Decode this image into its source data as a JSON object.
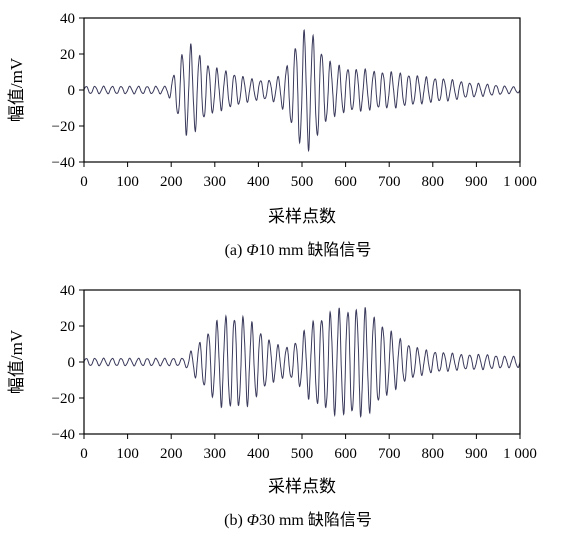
{
  "chart_data": [
    {
      "type": "line",
      "caption_prefix": "(a) ",
      "caption_symbol": "Φ",
      "caption_rest": "10 mm 缺陷信号",
      "xlabel": "采样点数",
      "ylabel": "幅值/mV",
      "xlim": [
        0,
        1000
      ],
      "ylim": [
        -40,
        40
      ],
      "xticks": [
        0,
        100,
        200,
        300,
        400,
        500,
        600,
        700,
        800,
        900,
        1000
      ],
      "xtick_labels": [
        "0",
        "100",
        "200",
        "300",
        "400",
        "500",
        "600",
        "700",
        "800",
        "900",
        "1 000"
      ],
      "yticks": [
        40,
        20,
        0,
        -20,
        -40
      ],
      "ytick_labels": [
        "40",
        "20",
        "0",
        "−20",
        "−40"
      ],
      "series": [
        {
          "period": 20,
          "envelope": [
            [
              0,
              2
            ],
            [
              190,
              2
            ],
            [
              195,
              4
            ],
            [
              205,
              8
            ],
            [
              215,
              14
            ],
            [
              225,
              20
            ],
            [
              235,
              24
            ],
            [
              245,
              24
            ],
            [
              260,
              21
            ],
            [
              275,
              16
            ],
            [
              290,
              13
            ],
            [
              310,
              11
            ],
            [
              330,
              10
            ],
            [
              355,
              8
            ],
            [
              380,
              6
            ],
            [
              420,
              5
            ],
            [
              445,
              7
            ],
            [
              465,
              13
            ],
            [
              480,
              22
            ],
            [
              495,
              29
            ],
            [
              508,
              32
            ],
            [
              520,
              31
            ],
            [
              535,
              26
            ],
            [
              550,
              19
            ],
            [
              570,
              14
            ],
            [
              600,
              12
            ],
            [
              640,
              11
            ],
            [
              680,
              10
            ],
            [
              730,
              9
            ],
            [
              780,
              7
            ],
            [
              830,
              6
            ],
            [
              880,
              4
            ],
            [
              930,
              3
            ],
            [
              970,
              2
            ],
            [
              1000,
              1.5
            ]
          ]
        }
      ]
    },
    {
      "type": "line",
      "caption_prefix": "(b) ",
      "caption_symbol": "Φ",
      "caption_rest": "30 mm 缺陷信号",
      "xlabel": "采样点数",
      "ylabel": "幅值/mV",
      "xlim": [
        0,
        1000
      ],
      "ylim": [
        -40,
        40
      ],
      "xticks": [
        0,
        100,
        200,
        300,
        400,
        500,
        600,
        700,
        800,
        900,
        1000
      ],
      "xtick_labels": [
        "0",
        "100",
        "200",
        "300",
        "400",
        "500",
        "600",
        "700",
        "800",
        "900",
        "1 000"
      ],
      "yticks": [
        40,
        20,
        0,
        -20,
        -40
      ],
      "ytick_labels": [
        "40",
        "20",
        "0",
        "−20",
        "−40"
      ],
      "series": [
        {
          "period": 20,
          "envelope": [
            [
              0,
              2
            ],
            [
              225,
              2
            ],
            [
              235,
              3
            ],
            [
              250,
              7
            ],
            [
              270,
              12
            ],
            [
              290,
              18
            ],
            [
              310,
              23
            ],
            [
              330,
              25
            ],
            [
              350,
              25
            ],
            [
              370,
              24
            ],
            [
              395,
              19
            ],
            [
              420,
              13
            ],
            [
              445,
              9
            ],
            [
              470,
              8
            ],
            [
              490,
              12
            ],
            [
              510,
              18
            ],
            [
              530,
              23
            ],
            [
              555,
              26
            ],
            [
              580,
              28
            ],
            [
              610,
              29
            ],
            [
              630,
              29
            ],
            [
              650,
              28
            ],
            [
              670,
              24
            ],
            [
              690,
              19
            ],
            [
              710,
              15
            ],
            [
              735,
              11
            ],
            [
              760,
              8
            ],
            [
              790,
              6
            ],
            [
              830,
              5
            ],
            [
              870,
              4
            ],
            [
              920,
              4
            ],
            [
              970,
              3
            ],
            [
              1000,
              3
            ]
          ]
        }
      ]
    }
  ]
}
